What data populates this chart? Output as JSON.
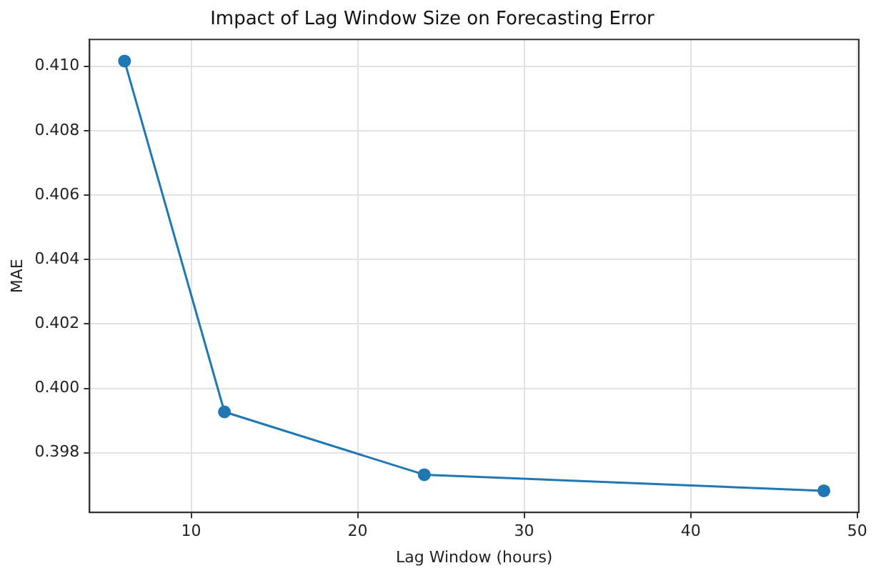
{
  "chart_data": {
    "type": "line",
    "title": "Impact of Lag Window Size on Forecasting Error",
    "xlabel": "Lag Window (hours)",
    "ylabel": "MAE",
    "x": [
      6,
      12,
      24,
      48
    ],
    "series": [
      {
        "color": "#1f77b4",
        "values": [
          0.41016,
          0.39927,
          0.39732,
          0.39682
        ]
      }
    ],
    "xlim": [
      3.9,
      50.1
    ],
    "xticks": [
      10,
      20,
      30,
      40,
      50
    ],
    "ylim": [
      0.39615,
      0.41083
    ],
    "yticks": [
      0.398,
      {
        "value": 0.4,
        "label": "0.400"
      },
      0.402,
      0.404,
      0.406,
      0.408,
      {
        "value": 0.41,
        "label": "0.410"
      }
    ],
    "grid": true,
    "legend": false,
    "marker": "circle",
    "line_style": "solid"
  }
}
